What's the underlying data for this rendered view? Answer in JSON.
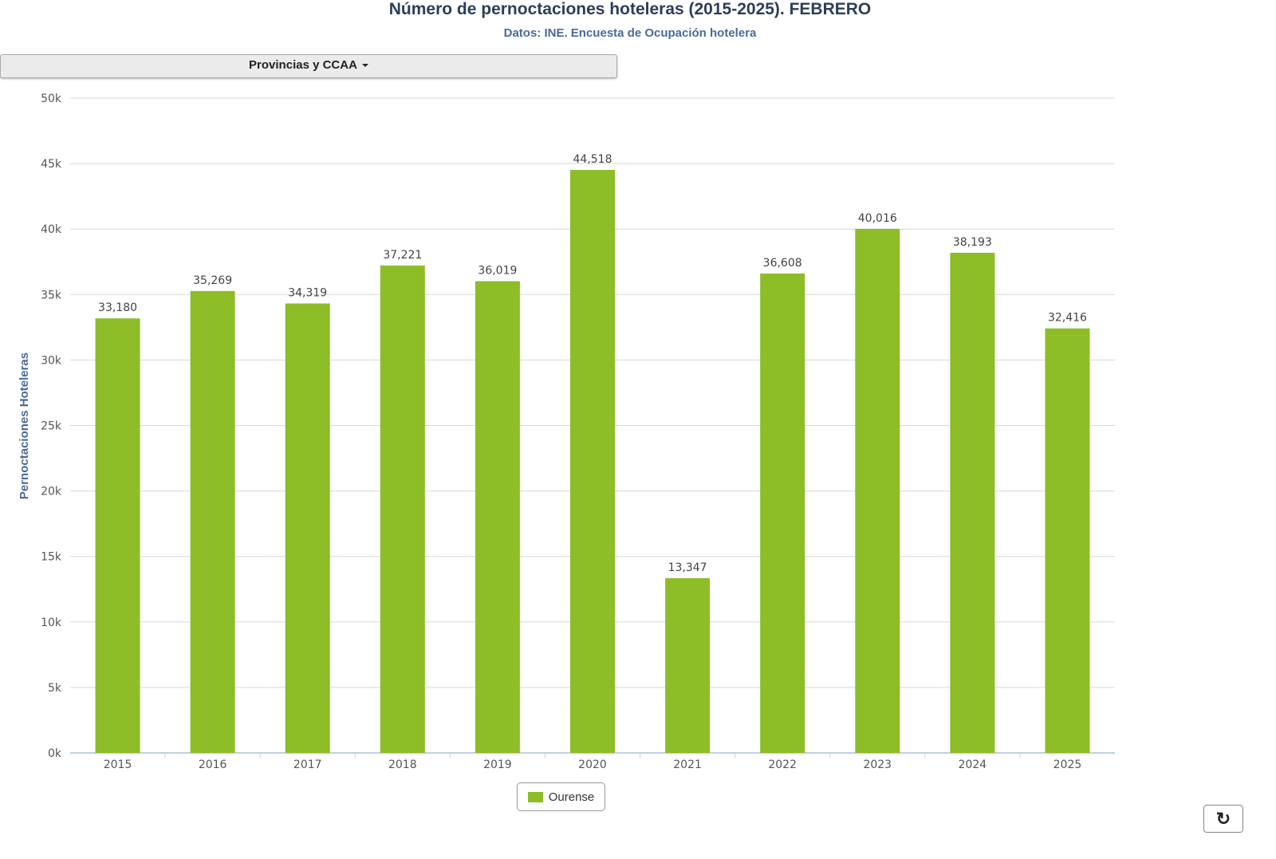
{
  "chart_data": {
    "type": "bar",
    "title": "Número de pernoctaciones hoteleras (2015-2025). FEBRERO",
    "subtitle": "Datos: INE. Encuesta de Ocupación hotelera",
    "xlabel": "",
    "ylabel": "Pernoctaciones Hoteleras",
    "ylim": [
      0,
      50000
    ],
    "yticks": [
      "0k",
      "5k",
      "10k",
      "15k",
      "20k",
      "25k",
      "30k",
      "35k",
      "40k",
      "45k",
      "50k"
    ],
    "grid": true,
    "legend_position": "bottom",
    "categories": [
      "2015",
      "2016",
      "2017",
      "2018",
      "2019",
      "2020",
      "2021",
      "2022",
      "2023",
      "2024",
      "2025"
    ],
    "series": [
      {
        "name": "Ourense",
        "color": "#8dbd27",
        "values": [
          33180,
          35269,
          34319,
          37221,
          36019,
          44518,
          13347,
          36608,
          40016,
          38193,
          32416
        ],
        "labels": [
          "33,180",
          "35,269",
          "34,319",
          "37,221",
          "36,019",
          "44,518",
          "13,347",
          "36,608",
          "40,016",
          "38,193",
          "32,416"
        ]
      }
    ]
  },
  "controls": {
    "dropdown_label": "Provincias y CCAA",
    "refresh_icon": "refresh-icon"
  }
}
